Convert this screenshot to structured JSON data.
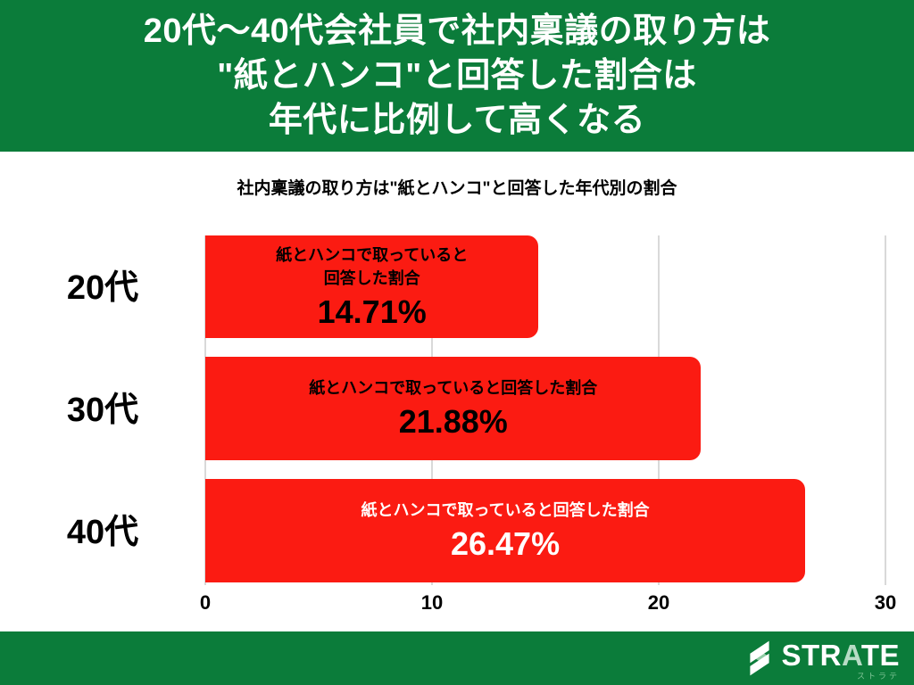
{
  "header": {
    "title_lines": [
      "20代〜40代会社員で社内稟議の取り方は",
      "\"紙とハンコ\"と回答した割合は",
      "年代に比例して高くなる"
    ]
  },
  "chart": {
    "title": "社内稟議の取り方は\"紙とハンコ\"と回答した年代別の割合",
    "bars": [
      {
        "category": "20代",
        "label_line1": "紙とハンコで取っていると",
        "label_line2": "回答した割合",
        "value_label": "14.71%",
        "width_pct": 49.0
      },
      {
        "category": "30代",
        "label_line1": "紙とハンコで取っていると回答した割合",
        "label_line2": "",
        "value_label": "21.88%",
        "width_pct": 72.9
      },
      {
        "category": "40代",
        "label_line1": "紙とハンコで取っていると回答した割合",
        "label_line2": "",
        "value_label": "26.47%",
        "width_pct": 88.2
      }
    ],
    "x_ticks": [
      "0",
      "10",
      "20",
      "30"
    ]
  },
  "chart_data": {
    "type": "bar",
    "orientation": "horizontal",
    "title": "社内稟議の取り方は\"紙とハンコ\"と回答した年代別の割合",
    "categories": [
      "20代",
      "30代",
      "40代"
    ],
    "values": [
      14.71,
      21.88,
      26.47
    ],
    "series_label": "紙とハンコで取っていると回答した割合",
    "xlim": [
      0,
      30
    ],
    "x_ticks": [
      0,
      10,
      20,
      30
    ],
    "grid": "vertical-gridlines",
    "legend": "none",
    "bar_color": "#fb1b12",
    "value_text_colors": [
      "#000000",
      "#000000",
      "#ffffff"
    ]
  },
  "footer": {
    "logo": {
      "brand_prefix": "STR",
      "brand_a": "A",
      "brand_suffix": "TE",
      "kana": "ストラテ"
    }
  },
  "colors": {
    "banner_green": "#0b7c3a",
    "bar_red": "#fb1b12",
    "gridline_gray": "#d9d9d9",
    "kana_green": "#7fc496"
  }
}
